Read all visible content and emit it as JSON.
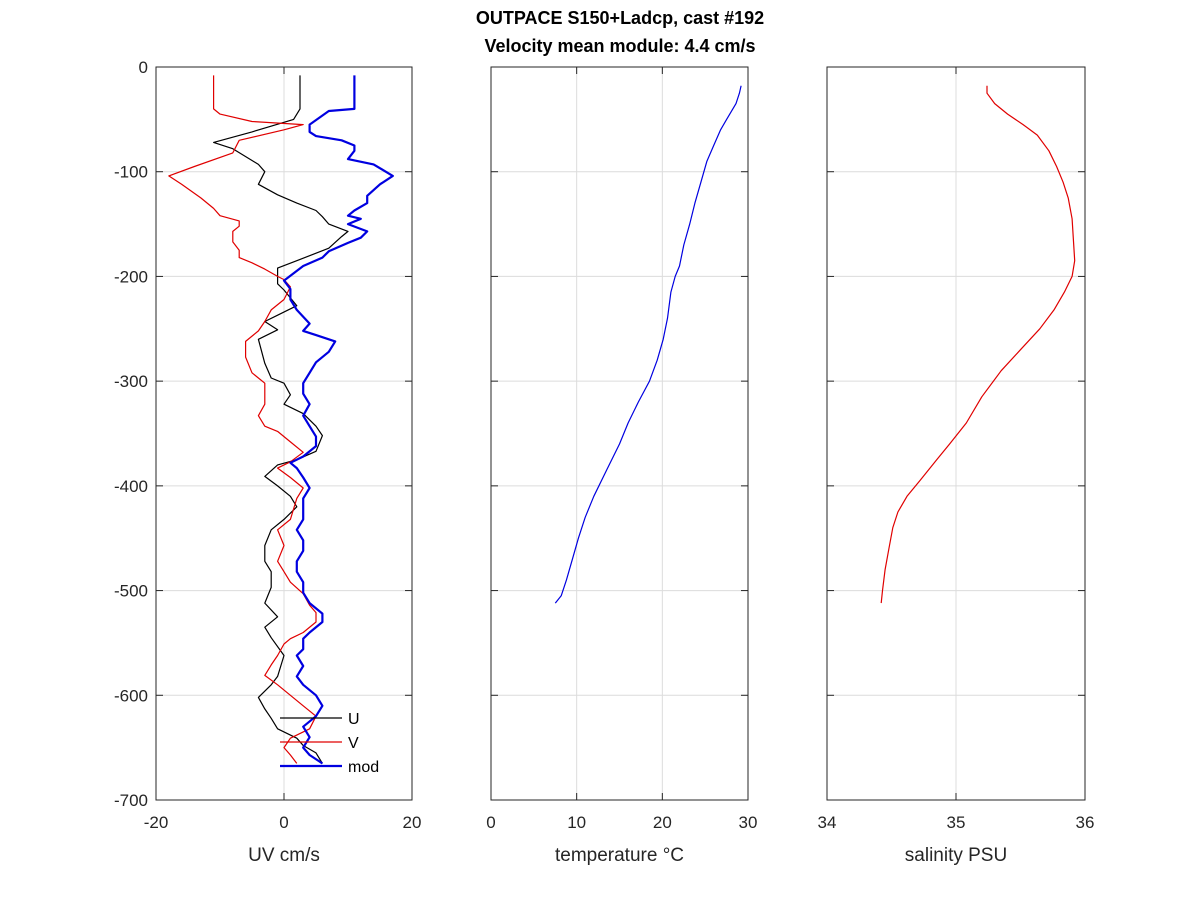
{
  "title_line1": "OUTPACE S150+Ladcp, cast #192",
  "title_line2": "Velocity mean module:  4.4 cm/s",
  "colors": {
    "U": "#000000",
    "V": "#e00000",
    "mod": "#0000e0",
    "temperature": "#0000e0",
    "salinity": "#e00000"
  },
  "chart_data": [
    {
      "type": "line",
      "xlabel": "UV cm/s",
      "ylabel": "",
      "xlim": [
        -20,
        20
      ],
      "ylim": [
        -700,
        0
      ],
      "xticks": [
        -20,
        0,
        20
      ],
      "yticks": [
        0,
        -100,
        -200,
        -300,
        -400,
        -500,
        -600,
        -700
      ],
      "grid": true,
      "legend_position": "bottom-right",
      "series": [
        {
          "name": "U",
          "line_width": "thin",
          "points": [
            [
              2.5,
              -8
            ],
            [
              2.5,
              -40
            ],
            [
              1.5,
              -50
            ],
            [
              -5,
              -62
            ],
            [
              -11,
              -72
            ],
            [
              -8,
              -78
            ],
            [
              -4,
              -93
            ],
            [
              -3,
              -100
            ],
            [
              -4,
              -112
            ],
            [
              -1,
              -122
            ],
            [
              2,
              -130
            ],
            [
              5,
              -137
            ],
            [
              6,
              -143
            ],
            [
              7,
              -150
            ],
            [
              10,
              -157
            ],
            [
              9,
              -162
            ],
            [
              7,
              -173
            ],
            [
              2,
              -185
            ],
            [
              -1,
              -192
            ],
            [
              -1,
              -207
            ],
            [
              0,
              -213
            ],
            [
              2,
              -228
            ],
            [
              -1,
              -237
            ],
            [
              -3,
              -243
            ],
            [
              -1,
              -251
            ],
            [
              -4,
              -260
            ],
            [
              -3,
              -283
            ],
            [
              -2,
              -297
            ],
            [
              0,
              -302
            ],
            [
              1,
              -313
            ],
            [
              0,
              -322
            ],
            [
              3,
              -331
            ],
            [
              5,
              -343
            ],
            [
              6,
              -352
            ],
            [
              5,
              -367
            ],
            [
              2,
              -375
            ],
            [
              -1,
              -380
            ],
            [
              -3,
              -391
            ],
            [
              -1,
              -400
            ],
            [
              1,
              -410
            ],
            [
              2,
              -420
            ],
            [
              0,
              -432
            ],
            [
              -2,
              -442
            ],
            [
              -3,
              -457
            ],
            [
              -3,
              -472
            ],
            [
              -2,
              -482
            ],
            [
              -2,
              -497
            ],
            [
              -3,
              -512
            ],
            [
              -1,
              -525
            ],
            [
              -3,
              -535
            ],
            [
              -2,
              -545
            ],
            [
              0,
              -562
            ],
            [
              -1,
              -582
            ],
            [
              -2,
              -590
            ],
            [
              -4,
              -602
            ],
            [
              -3,
              -613
            ],
            [
              -2,
              -622
            ],
            [
              -1,
              -632
            ],
            [
              2,
              -641
            ],
            [
              3,
              -648
            ],
            [
              5,
              -655
            ],
            [
              6,
              -665
            ]
          ]
        },
        {
          "name": "V",
          "line_width": "thin",
          "points": [
            [
              -11,
              -8
            ],
            [
              -11,
              -40
            ],
            [
              -10,
              -45
            ],
            [
              -5,
              -52
            ],
            [
              3,
              -55
            ],
            [
              0,
              -60
            ],
            [
              -7,
              -70
            ],
            [
              -8,
              -82
            ],
            [
              -14,
              -95
            ],
            [
              -18,
              -104
            ],
            [
              -16,
              -112
            ],
            [
              -13,
              -125
            ],
            [
              -11,
              -135
            ],
            [
              -10,
              -142
            ],
            [
              -7,
              -147
            ],
            [
              -7,
              -152
            ],
            [
              -8,
              -157
            ],
            [
              -8,
              -167
            ],
            [
              -7,
              -175
            ],
            [
              -7,
              -182
            ],
            [
              -5,
              -187
            ],
            [
              -3,
              -193
            ],
            [
              -1,
              -200
            ],
            [
              0,
              -203
            ],
            [
              1,
              -210
            ],
            [
              0,
              -222
            ],
            [
              -2,
              -232
            ],
            [
              -3,
              -243
            ],
            [
              -4,
              -252
            ],
            [
              -6,
              -262
            ],
            [
              -6,
              -277
            ],
            [
              -5,
              -292
            ],
            [
              -3,
              -302
            ],
            [
              -3,
              -312
            ],
            [
              -3,
              -322
            ],
            [
              -4,
              -333
            ],
            [
              -3,
              -343
            ],
            [
              -1,
              -348
            ],
            [
              1,
              -358
            ],
            [
              3,
              -368
            ],
            [
              1,
              -377
            ],
            [
              -1,
              -383
            ],
            [
              1,
              -392
            ],
            [
              3,
              -402
            ],
            [
              2,
              -412
            ],
            [
              1,
              -432
            ],
            [
              -1,
              -442
            ],
            [
              0,
              -457
            ],
            [
              -1,
              -472
            ],
            [
              0,
              -482
            ],
            [
              1,
              -492
            ],
            [
              3,
              -503
            ],
            [
              4,
              -514
            ],
            [
              5,
              -521
            ],
            [
              5,
              -530
            ],
            [
              3,
              -540
            ],
            [
              1,
              -546
            ],
            [
              0,
              -551
            ],
            [
              -1,
              -562
            ],
            [
              -2,
              -571
            ],
            [
              -3,
              -581
            ],
            [
              -1,
              -590
            ],
            [
              1,
              -600
            ],
            [
              3,
              -610
            ],
            [
              5,
              -620
            ],
            [
              4,
              -632
            ],
            [
              1,
              -641
            ],
            [
              0,
              -650
            ],
            [
              1,
              -657
            ],
            [
              2,
              -665
            ]
          ]
        },
        {
          "name": "mod",
          "line_width": "thick",
          "points": [
            [
              11,
              -8
            ],
            [
              11,
              -40
            ],
            [
              7,
              -42
            ],
            [
              4,
              -55
            ],
            [
              4,
              -62
            ],
            [
              5,
              -66
            ],
            [
              9,
              -70
            ],
            [
              11,
              -75
            ],
            [
              11,
              -80
            ],
            [
              10,
              -88
            ],
            [
              14,
              -93
            ],
            [
              17,
              -104
            ],
            [
              15,
              -112
            ],
            [
              13,
              -123
            ],
            [
              13,
              -130
            ],
            [
              11,
              -137
            ],
            [
              10,
              -142
            ],
            [
              12,
              -145
            ],
            [
              10,
              -150
            ],
            [
              13,
              -157
            ],
            [
              12,
              -163
            ],
            [
              10,
              -168
            ],
            [
              7,
              -176
            ],
            [
              6,
              -182
            ],
            [
              3,
              -190
            ],
            [
              0,
              -204
            ],
            [
              1,
              -212
            ],
            [
              1,
              -222
            ],
            [
              2,
              -232
            ],
            [
              4,
              -245
            ],
            [
              3,
              -252
            ],
            [
              5,
              -256
            ],
            [
              8,
              -262
            ],
            [
              7,
              -272
            ],
            [
              5,
              -282
            ],
            [
              4,
              -292
            ],
            [
              3,
              -302
            ],
            [
              3,
              -312
            ],
            [
              4,
              -322
            ],
            [
              3,
              -333
            ],
            [
              4,
              -343
            ],
            [
              5,
              -353
            ],
            [
              5,
              -362
            ],
            [
              3,
              -372
            ],
            [
              1,
              -378
            ],
            [
              2,
              -383
            ],
            [
              3,
              -392
            ],
            [
              4,
              -402
            ],
            [
              3,
              -412
            ],
            [
              3,
              -432
            ],
            [
              2,
              -442
            ],
            [
              3,
              -452
            ],
            [
              3,
              -462
            ],
            [
              2,
              -472
            ],
            [
              2,
              -482
            ],
            [
              3,
              -492
            ],
            [
              3,
              -502
            ],
            [
              4,
              -512
            ],
            [
              6,
              -522
            ],
            [
              6,
              -530
            ],
            [
              4,
              -540
            ],
            [
              3,
              -546
            ],
            [
              3,
              -556
            ],
            [
              2,
              -562
            ],
            [
              3,
              -572
            ],
            [
              2,
              -582
            ],
            [
              3,
              -590
            ],
            [
              5,
              -600
            ],
            [
              6,
              -610
            ],
            [
              5,
              -620
            ],
            [
              3,
              -630
            ],
            [
              4,
              -640
            ],
            [
              3,
              -650
            ],
            [
              4,
              -657
            ],
            [
              6,
              -665
            ]
          ]
        }
      ]
    },
    {
      "type": "line",
      "xlabel": "temperature °C",
      "xlim": [
        0,
        30
      ],
      "ylim": [
        -700,
        0
      ],
      "xticks": [
        0,
        10,
        20,
        30
      ],
      "grid": true,
      "series": [
        {
          "name": "temperature",
          "points": [
            [
              29.2,
              -18
            ],
            [
              29.0,
              -25
            ],
            [
              28.6,
              -35
            ],
            [
              27.5,
              -50
            ],
            [
              26.8,
              -60
            ],
            [
              26.0,
              -75
            ],
            [
              25.2,
              -90
            ],
            [
              24.5,
              -110
            ],
            [
              23.8,
              -130
            ],
            [
              23.2,
              -150
            ],
            [
              22.5,
              -170
            ],
            [
              22.0,
              -190
            ],
            [
              21.5,
              -200
            ],
            [
              21.0,
              -215
            ],
            [
              20.6,
              -240
            ],
            [
              20.1,
              -260
            ],
            [
              19.4,
              -280
            ],
            [
              18.5,
              -300
            ],
            [
              17.2,
              -320
            ],
            [
              16.0,
              -340
            ],
            [
              15.0,
              -360
            ],
            [
              13.5,
              -385
            ],
            [
              12.0,
              -410
            ],
            [
              11.0,
              -430
            ],
            [
              10.2,
              -450
            ],
            [
              9.5,
              -470
            ],
            [
              8.8,
              -490
            ],
            [
              8.2,
              -505
            ],
            [
              7.5,
              -512
            ]
          ]
        }
      ]
    },
    {
      "type": "line",
      "xlabel": "salinity PSU",
      "xlim": [
        34,
        36
      ],
      "ylim": [
        -700,
        0
      ],
      "xticks": [
        34,
        35,
        36
      ],
      "grid": true,
      "series": [
        {
          "name": "salinity",
          "points": [
            [
              35.24,
              -18
            ],
            [
              35.24,
              -25
            ],
            [
              35.3,
              -35
            ],
            [
              35.4,
              -45
            ],
            [
              35.52,
              -55
            ],
            [
              35.63,
              -65
            ],
            [
              35.72,
              -80
            ],
            [
              35.78,
              -95
            ],
            [
              35.83,
              -110
            ],
            [
              35.87,
              -125
            ],
            [
              35.9,
              -145
            ],
            [
              35.91,
              -165
            ],
            [
              35.92,
              -185
            ],
            [
              35.9,
              -200
            ],
            [
              35.84,
              -215
            ],
            [
              35.76,
              -232
            ],
            [
              35.65,
              -250
            ],
            [
              35.5,
              -270
            ],
            [
              35.35,
              -290
            ],
            [
              35.2,
              -315
            ],
            [
              35.08,
              -340
            ],
            [
              34.95,
              -360
            ],
            [
              34.85,
              -375
            ],
            [
              34.72,
              -395
            ],
            [
              34.62,
              -410
            ],
            [
              34.55,
              -425
            ],
            [
              34.51,
              -440
            ],
            [
              34.48,
              -460
            ],
            [
              34.45,
              -480
            ],
            [
              34.43,
              -500
            ],
            [
              34.42,
              -512
            ]
          ]
        }
      ]
    }
  ]
}
